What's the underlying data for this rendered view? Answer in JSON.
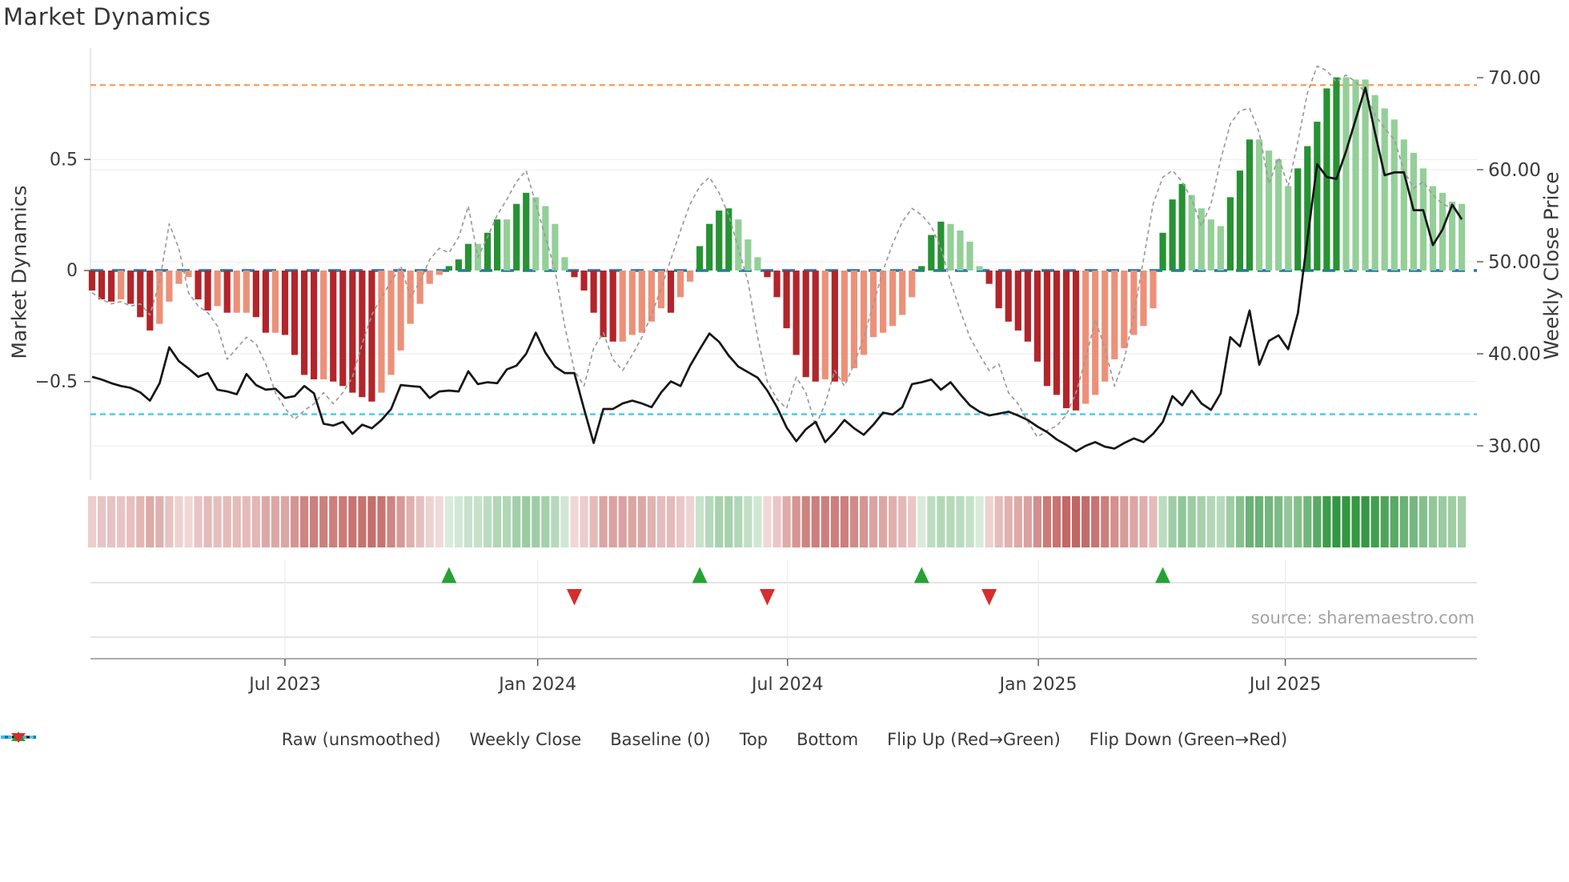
{
  "title": "Market Dynamics",
  "source": "source: sharemaestro.com",
  "colors": {
    "bar_dark_red": "#b2252a",
    "bar_light_red": "#ec9179",
    "bar_dark_green": "#279233",
    "bar_light_green": "#94cf98",
    "baseline_blue": "#1f77b4",
    "top_orange": "#f3a15c",
    "bottom_cyan": "#44c8ef",
    "raw_gray": "#9b9b9b",
    "close_black": "#161616",
    "flip_up_green": "#26a234",
    "flip_down_red": "#d62d2d",
    "heat_red": "#ac302c",
    "heat_green": "#2b923a"
  },
  "legend": {
    "items": [
      {
        "marker": "dash-gray",
        "label": "Raw (unsmoothed)"
      },
      {
        "marker": "solid-black",
        "label": "Weekly Close"
      },
      {
        "marker": "dash-blue",
        "label": "Baseline (0)"
      },
      {
        "marker": "dot-orange",
        "label": "Top"
      },
      {
        "marker": "dot-cyan",
        "label": "Bottom"
      },
      {
        "marker": "tri-up",
        "label": "Flip Up (Red→Green)"
      },
      {
        "marker": "tri-down",
        "label": "Flip Down (Green→Red)"
      }
    ]
  },
  "chart_data": {
    "type": "combo",
    "title": "Market Dynamics",
    "x_unit": "week",
    "n_weeks": 143,
    "x_ticks": [
      {
        "week": 20.0,
        "label": "Jul 2023"
      },
      {
        "week": 46.2,
        "label": "Jan 2024"
      },
      {
        "week": 72.1,
        "label": "Jul 2024"
      },
      {
        "week": 98.1,
        "label": "Jan 2025"
      },
      {
        "week": 123.7,
        "label": "Jul 2025"
      }
    ],
    "left_axis": {
      "label": "Market Dynamics",
      "tick_labels": [
        "0.5",
        "0",
        "−0.5"
      ],
      "tick_values": [
        0.5,
        0,
        -0.5
      ],
      "range": [
        -0.75,
        1.0
      ]
    },
    "right_axis": {
      "label": "Weekly Close Price",
      "tick_labels": [
        "70.00",
        "60.00",
        "50.00",
        "40.00",
        "30.00"
      ],
      "tick_values": [
        70,
        60,
        50,
        40,
        30
      ],
      "range": [
        27,
        71
      ]
    },
    "baseline": 0,
    "top_threshold": 0.835,
    "bottom_threshold": -0.647,
    "flip_up_weeks": [
      37,
      63,
      86,
      111
    ],
    "flip_down_weeks": [
      50,
      70,
      93
    ],
    "heatmap_from": "oscillator",
    "grid": "light horizontal gridlines; legend below chart; heatmap strip and flip-marker panel between chart and date axis",
    "series": [
      {
        "name": "Oscillator (bars)",
        "type": "bar",
        "axis": "left",
        "values": [
          -0.09,
          -0.13,
          -0.14,
          -0.13,
          -0.15,
          -0.21,
          -0.27,
          -0.24,
          -0.14,
          -0.06,
          -0.03,
          -0.13,
          -0.18,
          -0.16,
          -0.19,
          -0.19,
          -0.19,
          -0.21,
          -0.28,
          -0.28,
          -0.29,
          -0.38,
          -0.47,
          -0.49,
          -0.49,
          -0.5,
          -0.52,
          -0.55,
          -0.57,
          -0.59,
          -0.55,
          -0.47,
          -0.36,
          -0.24,
          -0.15,
          -0.06,
          -0.02,
          0.02,
          0.05,
          0.12,
          0.12,
          0.17,
          0.23,
          0.23,
          0.3,
          0.35,
          0.33,
          0.29,
          0.21,
          0.06,
          -0.03,
          -0.09,
          -0.19,
          -0.3,
          -0.32,
          -0.32,
          -0.29,
          -0.28,
          -0.23,
          -0.17,
          -0.19,
          -0.12,
          -0.05,
          0.11,
          0.21,
          0.27,
          0.28,
          0.23,
          0.14,
          0.06,
          -0.03,
          -0.12,
          -0.26,
          -0.38,
          -0.48,
          -0.5,
          -0.49,
          -0.5,
          -0.5,
          -0.44,
          -0.38,
          -0.3,
          -0.28,
          -0.25,
          -0.2,
          -0.12,
          0.02,
          0.16,
          0.22,
          0.21,
          0.18,
          0.13,
          0.02,
          -0.06,
          -0.17,
          -0.23,
          -0.27,
          -0.32,
          -0.41,
          -0.52,
          -0.56,
          -0.62,
          -0.63,
          -0.6,
          -0.56,
          -0.5,
          -0.4,
          -0.35,
          -0.29,
          -0.25,
          -0.17,
          0.17,
          0.32,
          0.39,
          0.34,
          0.28,
          0.23,
          0.2,
          0.33,
          0.45,
          0.59,
          0.59,
          0.54,
          0.5,
          0.38,
          0.46,
          0.56,
          0.67,
          0.82,
          0.87,
          0.87,
          0.86,
          0.86,
          0.79,
          0.73,
          0.68,
          0.59,
          0.53,
          0.46,
          0.38,
          0.35,
          0.31,
          0.3
        ]
      },
      {
        "name": "Raw (unsmoothed)",
        "type": "line",
        "style": "dashed",
        "axis": "left",
        "values": [
          -0.1,
          -0.13,
          -0.15,
          -0.14,
          -0.16,
          -0.15,
          -0.2,
          -0.05,
          0.21,
          0.1,
          -0.1,
          -0.16,
          -0.19,
          -0.25,
          -0.4,
          -0.35,
          -0.3,
          -0.33,
          -0.42,
          -0.55,
          -0.62,
          -0.67,
          -0.63,
          -0.6,
          -0.55,
          -0.6,
          -0.55,
          -0.48,
          -0.33,
          -0.2,
          -0.12,
          -0.05,
          0.02,
          -0.12,
          -0.05,
          0.05,
          0.1,
          0.08,
          0.15,
          0.29,
          0.06,
          0.15,
          0.25,
          0.32,
          0.4,
          0.45,
          0.3,
          0.15,
          0.0,
          -0.25,
          -0.45,
          -0.52,
          -0.35,
          -0.28,
          -0.4,
          -0.45,
          -0.38,
          -0.3,
          -0.2,
          -0.08,
          0.05,
          0.18,
          0.3,
          0.38,
          0.42,
          0.35,
          0.25,
          0.1,
          -0.05,
          -0.3,
          -0.5,
          -0.58,
          -0.62,
          -0.48,
          -0.55,
          -0.7,
          -0.6,
          -0.45,
          -0.52,
          -0.42,
          -0.3,
          -0.15,
          0.0,
          0.12,
          0.22,
          0.28,
          0.25,
          0.2,
          0.1,
          -0.05,
          -0.18,
          -0.3,
          -0.38,
          -0.45,
          -0.42,
          -0.55,
          -0.6,
          -0.68,
          -0.75,
          -0.72,
          -0.7,
          -0.65,
          -0.55,
          -0.4,
          -0.22,
          -0.35,
          -0.52,
          -0.4,
          -0.2,
          0.05,
          0.3,
          0.42,
          0.45,
          0.4,
          0.32,
          0.2,
          0.3,
          0.5,
          0.66,
          0.72,
          0.73,
          0.62,
          0.39,
          0.51,
          0.38,
          0.58,
          0.8,
          0.92,
          0.9,
          0.85,
          0.88,
          0.85,
          0.8,
          0.7,
          0.64,
          0.59,
          0.45,
          0.37,
          0.4,
          0.34,
          0.3,
          0.28,
          0.25
        ]
      },
      {
        "name": "Weekly Close",
        "type": "line",
        "axis": "right",
        "values": [
          37.5,
          37.2,
          36.8,
          36.5,
          36.3,
          35.8,
          34.9,
          36.8,
          40.7,
          39.2,
          38.4,
          37.5,
          37.9,
          36.1,
          35.9,
          35.6,
          37.8,
          36.6,
          36.1,
          36.2,
          35.2,
          35.4,
          36.5,
          35.7,
          32.4,
          32.2,
          32.6,
          31.3,
          32.3,
          31.9,
          32.8,
          34.0,
          36.6,
          36.5,
          36.4,
          35.2,
          35.9,
          36.0,
          35.9,
          38.1,
          36.7,
          36.9,
          36.8,
          38.3,
          38.7,
          40.0,
          42.3,
          40.1,
          38.6,
          37.9,
          37.9,
          34.0,
          30.3,
          34.0,
          34.0,
          34.6,
          34.9,
          34.6,
          34.2,
          35.8,
          37.0,
          36.5,
          38.7,
          40.5,
          42.2,
          41.3,
          39.8,
          38.6,
          38.0,
          37.4,
          36.0,
          34.2,
          32.0,
          30.5,
          31.8,
          32.6,
          30.4,
          31.5,
          32.8,
          31.9,
          31.2,
          32.3,
          33.6,
          33.4,
          34.2,
          36.7,
          36.9,
          37.2,
          36.1,
          36.9,
          35.6,
          34.4,
          33.7,
          33.3,
          33.5,
          33.7,
          33.3,
          32.8,
          32.1,
          31.5,
          30.7,
          30.1,
          29.4,
          30.0,
          30.4,
          29.9,
          29.7,
          30.3,
          30.8,
          30.4,
          31.3,
          32.6,
          35.4,
          34.4,
          36.0,
          34.6,
          33.9,
          35.7,
          41.8,
          40.8,
          44.7,
          38.8,
          41.4,
          42.0,
          40.5,
          44.4,
          52.5,
          60.6,
          59.2,
          59.0,
          62.0,
          65.5,
          68.9,
          64.0,
          59.4,
          59.7,
          59.7,
          55.6,
          55.6,
          51.8,
          53.5,
          56.2,
          54.6
        ]
      }
    ]
  }
}
